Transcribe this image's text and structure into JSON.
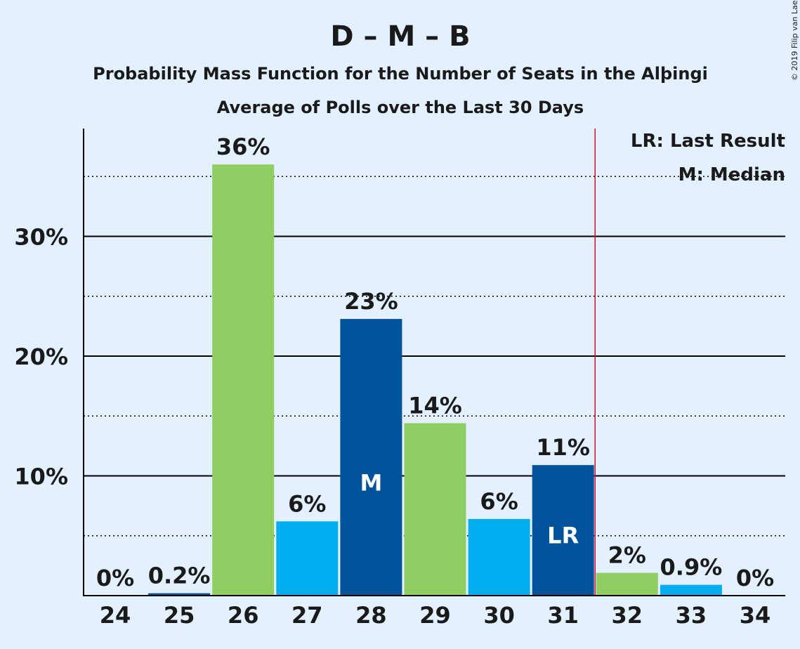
{
  "chart_data": {
    "type": "bar",
    "title": "D – M – B",
    "subtitle1": "Probability Mass Function for the Number of Seats in the Alþingi",
    "subtitle2": "Average of Polls over the Last 30 Days",
    "copyright": "© 2019 Filip van Laenen",
    "categories": [
      "24",
      "25",
      "26",
      "27",
      "28",
      "29",
      "30",
      "31",
      "32",
      "33",
      "34"
    ],
    "values": [
      0,
      0.2,
      36,
      6.2,
      23.1,
      14.4,
      6.4,
      10.9,
      1.9,
      0.9,
      0
    ],
    "data_labels": [
      "0%",
      "0.2%",
      "36%",
      "6%",
      "23%",
      "14%",
      "6%",
      "11%",
      "2%",
      "0.9%",
      "0%"
    ],
    "bar_colors": [
      "#00aeef",
      "#00539b",
      "#8fce63",
      "#00aeef",
      "#00539b",
      "#8fce63",
      "#00aeef",
      "#00539b",
      "#8fce63",
      "#00aeef",
      "#00539b"
    ],
    "median_category": "28",
    "median_label": "M",
    "last_result_category": "31",
    "last_result_label": "LR",
    "majority_line_after": "31",
    "majority_line_color": "#c8102e",
    "ylim": [
      0,
      39
    ],
    "yticks": [
      10,
      20,
      30
    ],
    "ytick_labels": [
      "10%",
      "20%",
      "30%"
    ],
    "minor_gridlines": [
      5,
      15,
      25,
      35
    ],
    "legend": [
      "LR: Last Result",
      "M: Median"
    ],
    "legend_position": "top-right",
    "grid": true
  }
}
